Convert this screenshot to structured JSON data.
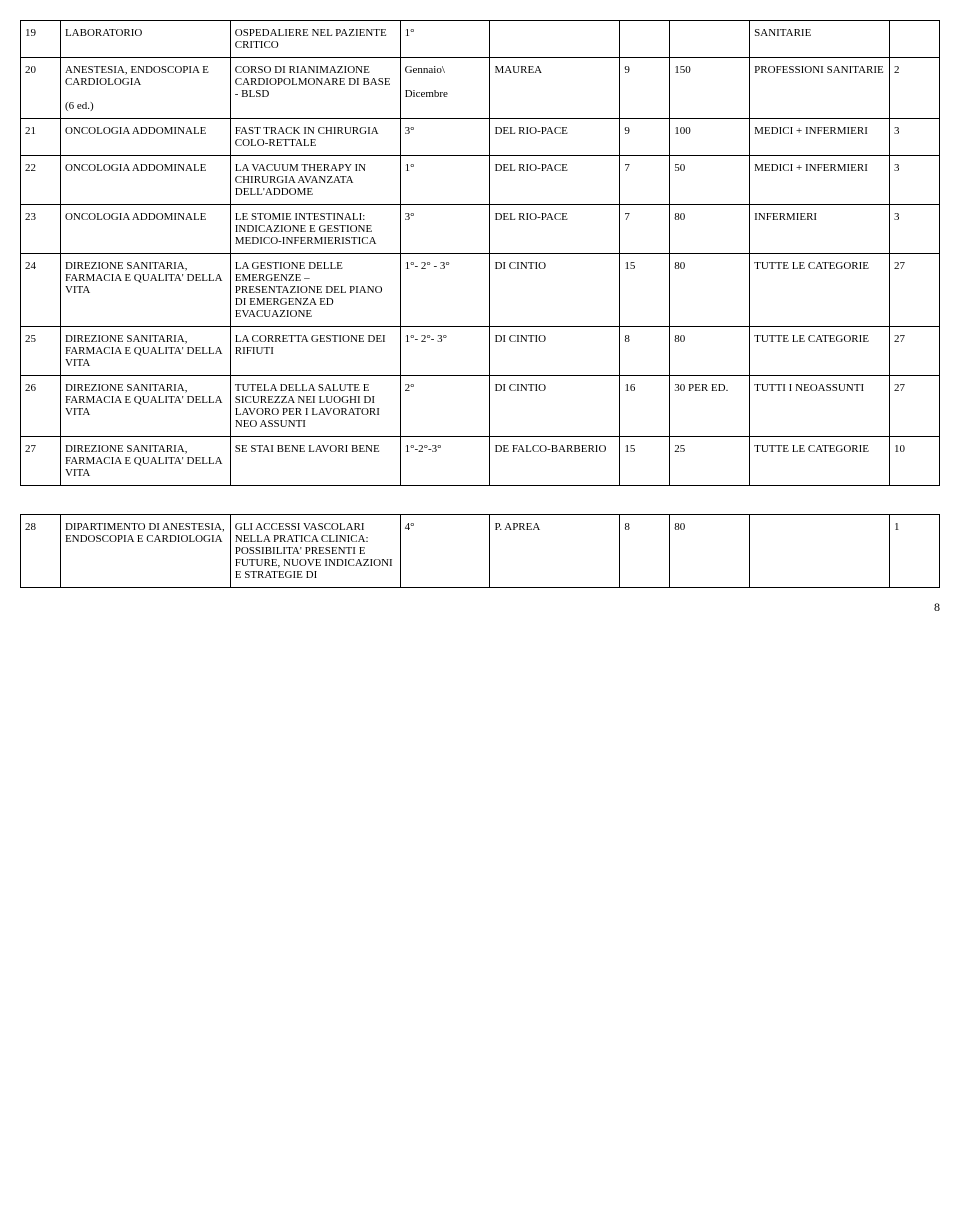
{
  "page_number": "8",
  "rows": [
    {
      "num": "19",
      "dept": "LABORATORIO",
      "course": "OSPEDALIERE NEL PAZIENTE CRITICO",
      "period": "1°",
      "name": "",
      "n1": "",
      "n2": "",
      "cat": "SANITARIE",
      "n3": ""
    },
    {
      "num": "20",
      "dept": "ANESTESIA, ENDOSCOPIA E CARDIOLOGIA\n\n(6 ed.)",
      "course": "CORSO DI RIANIMAZIONE CARDIOPOLMONARE DI BASE - BLSD",
      "period": "Gennaio\\\n\nDicembre",
      "name": "MAUREA",
      "n1": "9",
      "n2": "150",
      "cat": "PROFESSIONI SANITARIE",
      "n3": "2"
    },
    {
      "num": "21",
      "dept": "ONCOLOGIA ADDOMINALE",
      "course": "FAST TRACK IN CHIRURGIA COLO-RETTALE",
      "period": "3°",
      "name": "DEL RIO-PACE",
      "n1": "9",
      "n2": "100",
      "cat": "MEDICI + INFERMIERI",
      "n3": "3"
    },
    {
      "num": "22",
      "dept": "ONCOLOGIA ADDOMINALE",
      "course": "LA VACUUM THERAPY IN CHIRURGIA AVANZATA DELL'ADDOME",
      "period": "1°",
      "name": "DEL RIO-PACE",
      "n1": "7",
      "n2": "50",
      "cat": "MEDICI + INFERMIERI",
      "n3": "3"
    },
    {
      "num": "23",
      "dept": "ONCOLOGIA ADDOMINALE",
      "course": "LE STOMIE INTESTINALI: INDICAZIONE E GESTIONE MEDICO-INFERMIERISTICA",
      "period": "3°",
      "name": "DEL RIO-PACE",
      "n1": "7",
      "n2": "80",
      "cat": "INFERMIERI",
      "n3": "3"
    },
    {
      "num": "24",
      "dept": "DIREZIONE SANITARIA, FARMACIA E QUALITA' DELLA VITA",
      "course": "LA GESTIONE DELLE EMERGENZE – PRESENTAZIONE DEL PIANO DI EMERGENZA ED EVACUAZIONE",
      "period": "1°- 2° - 3°",
      "name": "DI CINTIO",
      "n1": "15",
      "n2": "80",
      "cat": "TUTTE LE CATEGORIE",
      "n3": "27"
    },
    {
      "num": "25",
      "dept": "DIREZIONE SANITARIA, FARMACIA E QUALITA' DELLA VITA",
      "course": "LA CORRETTA GESTIONE DEI RIFIUTI",
      "period": "1°- 2°- 3°",
      "name": "DI CINTIO",
      "n1": "8",
      "n2": "80",
      "cat": "TUTTE LE CATEGORIE",
      "n3": "27"
    },
    {
      "num": "26",
      "dept": "DIREZIONE SANITARIA, FARMACIA E QUALITA' DELLA VITA",
      "course": "TUTELA DELLA SALUTE E SICUREZZA NEI LUOGHI DI LAVORO PER I LAVORATORI NEO ASSUNTI",
      "period": "2°",
      "name": "DI CINTIO",
      "n1": "16",
      "n2": "30 PER ED.",
      "cat": "TUTTI I NEOASSUNTI",
      "n3": "27"
    },
    {
      "num": "27",
      "dept": "DIREZIONE SANITARIA, FARMACIA E QUALITA' DELLA VITA",
      "course": "SE STAI BENE LAVORI BENE",
      "period": "1°-2°-3°",
      "name": "DE FALCO-BARBERIO",
      "n1": "15",
      "n2": "25",
      "cat": "TUTTE LE CATEGORIE",
      "n3": "10"
    },
    {
      "num": "28",
      "dept": "DIPARTIMENTO DI ANESTESIA, ENDOSCOPIA E CARDIOLOGIA",
      "course": "GLI ACCESSI VASCOLARI NELLA PRATICA CLINICA: POSSIBILITA' PRESENTI E FUTURE, NUOVE INDICAZIONI E STRATEGIE DI",
      "period": "4°",
      "name": "P. APREA",
      "n1": "8",
      "n2": "80",
      "cat": "",
      "n3": "1"
    }
  ],
  "spacer_after": [
    8
  ]
}
